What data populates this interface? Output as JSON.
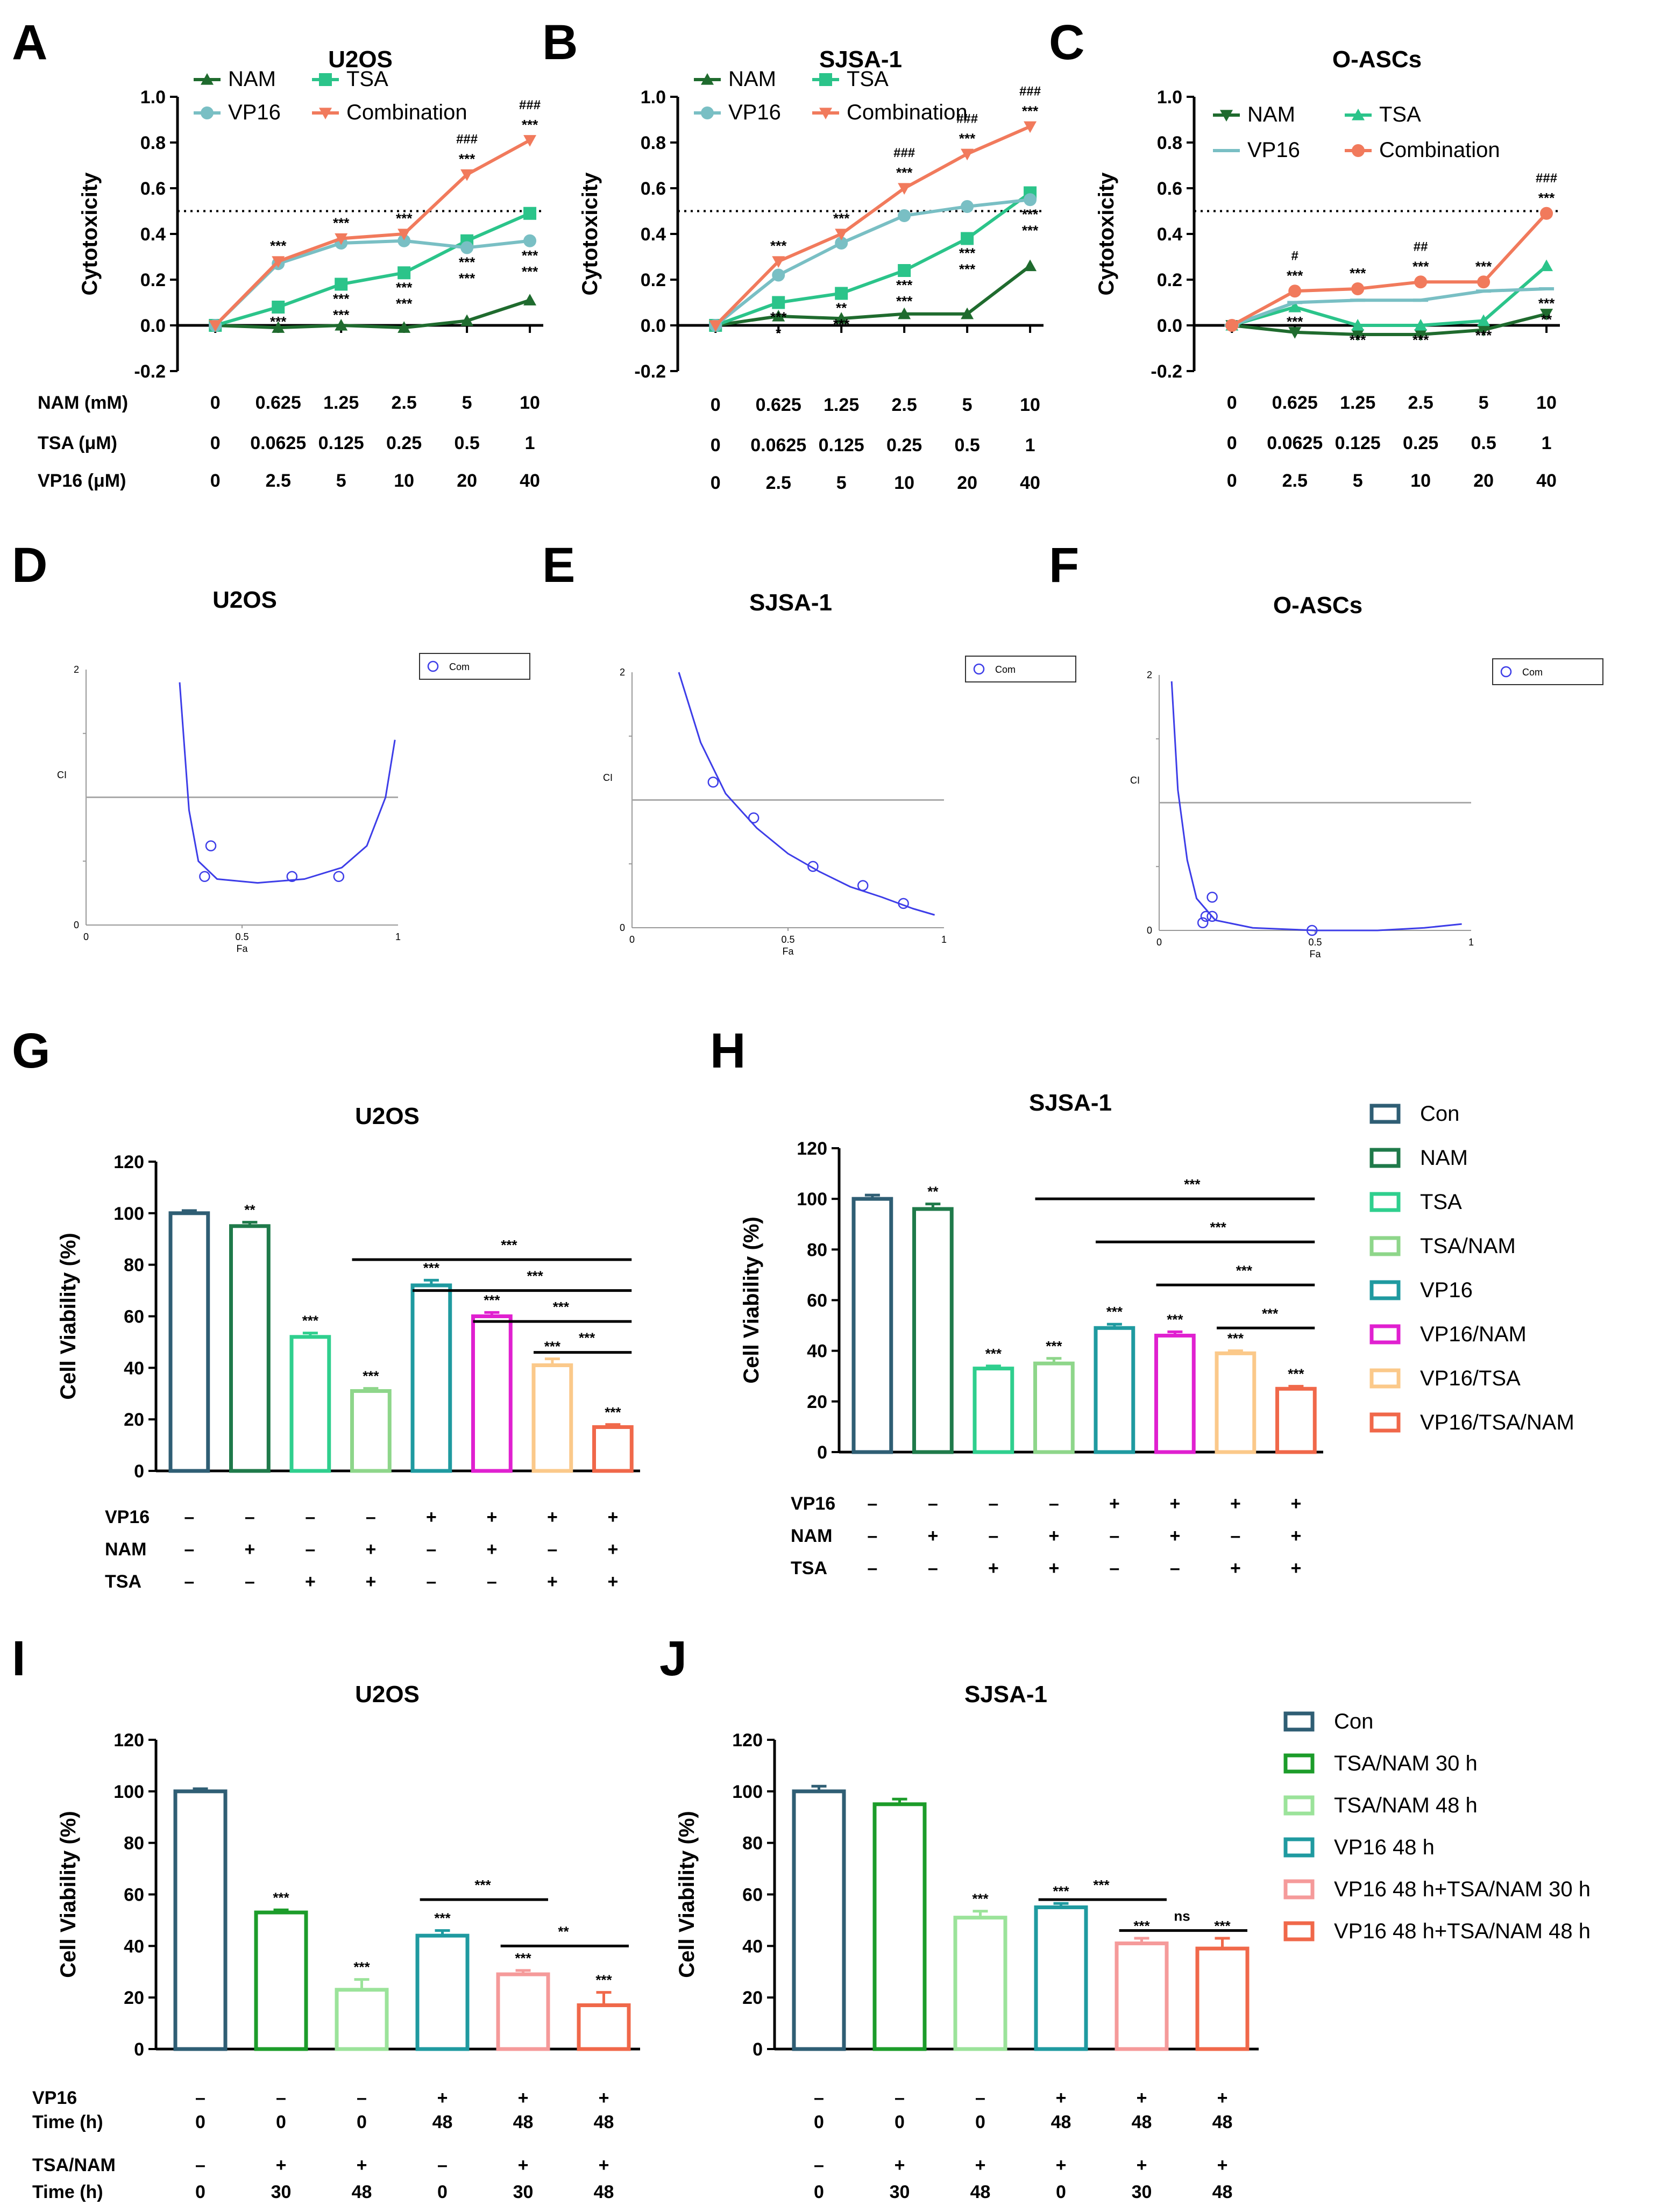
{
  "colors": {
    "NAM": "#1f6b2e",
    "TSA": "#2bc48a",
    "VP16": "#79bfc4",
    "Combination": "#f17a5c",
    "ci_curve": "#3d3de8",
    "bars": [
      "#2f5e74",
      "#1f7a4a",
      "#2fcf8e",
      "#8ed68a",
      "#1f9aa0",
      "#e020d0",
      "#fbc98a",
      "#f0684a"
    ],
    "bars_ij": [
      "#2f5e74",
      "#1c9c2a",
      "#9be39a",
      "#1f9aa0",
      "#f59a9a",
      "#f0684a"
    ]
  },
  "panels": {
    "A": "A",
    "B": "B",
    "C": "C",
    "D": "D",
    "E": "E",
    "F": "F",
    "G": "G",
    "H": "H",
    "I": "I",
    "J": "J"
  },
  "conditions_top": {
    "rows": [
      {
        "label": "NAM (mM)",
        "values": [
          "0",
          "0.625",
          "1.25",
          "2.5",
          "5",
          "10"
        ]
      },
      {
        "label": "TSA (μM)",
        "values": [
          "0",
          "0.0625",
          "0.125",
          "0.25",
          "0.5",
          "1"
        ]
      },
      {
        "label": "VP16 (μM)",
        "values": [
          "0",
          "2.5",
          "5",
          "10",
          "20",
          "40"
        ]
      }
    ]
  },
  "chart_data": [
    {
      "id": "A",
      "type": "line",
      "title": "U2OS",
      "ylabel": "Cytotoxicity",
      "ylim": [
        -0.2,
        1.0
      ],
      "yticks": [
        "-0.2",
        "0.0",
        "0.2",
        "0.4",
        "0.6",
        "0.8",
        "1.0"
      ],
      "threshold": 0.5,
      "legend": [
        "NAM",
        "VP16",
        "TSA",
        "Combination"
      ],
      "series": [
        {
          "name": "NAM",
          "values": [
            0.0,
            -0.01,
            0.0,
            -0.01,
            0.02,
            0.11
          ]
        },
        {
          "name": "TSA",
          "values": [
            0.0,
            0.08,
            0.18,
            0.23,
            0.37,
            0.49
          ]
        },
        {
          "name": "VP16",
          "values": [
            0.0,
            0.27,
            0.36,
            0.37,
            0.34,
            0.37
          ]
        },
        {
          "name": "Combination",
          "values": [
            0.0,
            0.28,
            0.38,
            0.4,
            0.66,
            0.81
          ]
        }
      ],
      "annotations": [
        [
          "",
          "***",
          "***",
          "***",
          "***",
          "***"
        ],
        [
          "",
          "***",
          "***",
          "***",
          "***",
          "***"
        ],
        [
          "",
          "",
          "***",
          "***",
          "***",
          "***"
        ],
        [
          "",
          "",
          "",
          "",
          "###",
          "###"
        ]
      ]
    },
    {
      "id": "B",
      "type": "line",
      "title": "SJSA-1",
      "ylabel": "Cytotoxicity",
      "ylim": [
        -0.2,
        1.0
      ],
      "yticks": [
        "-0.2",
        "0.0",
        "0.2",
        "0.4",
        "0.6",
        "0.8",
        "1.0"
      ],
      "threshold": 0.5,
      "legend": [
        "NAM",
        "VP16",
        "TSA",
        "Combination"
      ],
      "series": [
        {
          "name": "NAM",
          "values": [
            0.0,
            0.04,
            0.03,
            0.05,
            0.05,
            0.26
          ]
        },
        {
          "name": "TSA",
          "values": [
            0.0,
            0.1,
            0.14,
            0.24,
            0.38,
            0.58
          ]
        },
        {
          "name": "VP16",
          "values": [
            0.0,
            0.22,
            0.36,
            0.48,
            0.52,
            0.55
          ]
        },
        {
          "name": "Combination",
          "values": [
            0.0,
            0.28,
            0.4,
            0.6,
            0.75,
            0.87
          ]
        }
      ],
      "annotations": [
        [
          "",
          "***",
          "***",
          "***",
          "***",
          "***"
        ],
        [
          "",
          "***",
          "**",
          "***",
          "***",
          "***"
        ],
        [
          "",
          "*",
          "***",
          "***",
          "***",
          "***"
        ],
        [
          "",
          "",
          "",
          "###",
          "###",
          "###"
        ]
      ]
    },
    {
      "id": "C",
      "type": "line",
      "title": "O-ASCs",
      "ylabel": "Cytotoxicity",
      "ylim": [
        -0.2,
        1.0
      ],
      "yticks": [
        "-0.2",
        "0.0",
        "0.2",
        "0.4",
        "0.6",
        "0.8",
        "1.0"
      ],
      "threshold": 0.5,
      "legend": [
        "NAM",
        "VP16",
        "TSA",
        "Combination"
      ],
      "series": [
        {
          "name": "NAM",
          "values": [
            0.0,
            -0.03,
            -0.04,
            -0.04,
            -0.02,
            0.05
          ]
        },
        {
          "name": "TSA",
          "values": [
            0.0,
            0.08,
            0.0,
            0.0,
            0.02,
            0.26
          ]
        },
        {
          "name": "VP16",
          "values": [
            0.0,
            0.1,
            0.11,
            0.11,
            0.15,
            0.16
          ]
        },
        {
          "name": "Combination",
          "values": [
            0.0,
            0.15,
            0.16,
            0.19,
            0.19,
            0.49
          ]
        }
      ],
      "annotations": [
        [
          "",
          "***",
          "***",
          "***",
          "***",
          "***"
        ],
        [
          "",
          "***",
          "***",
          "***",
          "***",
          "***"
        ],
        [
          "",
          "",
          "",
          "",
          "",
          "**"
        ],
        [
          "",
          "#",
          "",
          "##",
          "",
          "###"
        ]
      ]
    },
    {
      "id": "D",
      "type": "scatter",
      "title": "U2OS",
      "xlabel": "Fa",
      "ylabel": "CI",
      "xlim": [
        0,
        1
      ],
      "ylim": [
        0,
        2
      ],
      "xticks": [
        "0",
        "0.5",
        "1"
      ],
      "yticks": [
        "0",
        "2"
      ],
      "legend": [
        "Com"
      ],
      "points": [
        [
          0.38,
          0.38
        ],
        [
          0.4,
          0.62
        ],
        [
          0.66,
          0.38
        ],
        [
          0.81,
          0.38
        ]
      ],
      "curve": [
        [
          0.3,
          1.9
        ],
        [
          0.33,
          0.9
        ],
        [
          0.36,
          0.5
        ],
        [
          0.42,
          0.36
        ],
        [
          0.55,
          0.33
        ],
        [
          0.7,
          0.36
        ],
        [
          0.82,
          0.45
        ],
        [
          0.9,
          0.62
        ],
        [
          0.96,
          1.0
        ],
        [
          0.99,
          1.45
        ]
      ]
    },
    {
      "id": "E",
      "type": "scatter",
      "title": "SJSA-1",
      "xlabel": "Fa",
      "ylabel": "CI",
      "xlim": [
        0,
        1
      ],
      "ylim": [
        0,
        2
      ],
      "xticks": [
        "0",
        "0.5",
        "1"
      ],
      "yticks": [
        "0",
        "2"
      ],
      "legend": [
        "Com"
      ],
      "points": [
        [
          0.26,
          1.14
        ],
        [
          0.39,
          0.86
        ],
        [
          0.58,
          0.48
        ],
        [
          0.74,
          0.33
        ],
        [
          0.87,
          0.19
        ]
      ],
      "curve": [
        [
          0.15,
          2.0
        ],
        [
          0.22,
          1.45
        ],
        [
          0.3,
          1.05
        ],
        [
          0.4,
          0.78
        ],
        [
          0.5,
          0.58
        ],
        [
          0.6,
          0.44
        ],
        [
          0.7,
          0.32
        ],
        [
          0.8,
          0.24
        ],
        [
          0.9,
          0.15
        ],
        [
          0.97,
          0.1
        ]
      ]
    },
    {
      "id": "F",
      "type": "scatter",
      "title": "O-ASCs",
      "xlabel": "Fa",
      "ylabel": "CI",
      "xlim": [
        0,
        1
      ],
      "ylim": [
        0,
        2
      ],
      "xticks": [
        "0",
        "0.5",
        "1"
      ],
      "yticks": [
        "0",
        "2"
      ],
      "legend": [
        "Com"
      ],
      "points": [
        [
          0.14,
          0.06
        ],
        [
          0.15,
          0.11
        ],
        [
          0.17,
          0.11
        ],
        [
          0.17,
          0.26
        ],
        [
          0.49,
          0.0
        ]
      ],
      "curve": [
        [
          0.04,
          1.95
        ],
        [
          0.06,
          1.1
        ],
        [
          0.09,
          0.55
        ],
        [
          0.12,
          0.25
        ],
        [
          0.18,
          0.08
        ],
        [
          0.3,
          0.02
        ],
        [
          0.5,
          0.0
        ],
        [
          0.7,
          0.0
        ],
        [
          0.85,
          0.02
        ],
        [
          0.97,
          0.05
        ]
      ]
    },
    {
      "id": "G",
      "type": "bar",
      "title": "U2OS",
      "ylabel": "Cell Viability (%)",
      "ylim": [
        0,
        120
      ],
      "yticks": [
        "0",
        "20",
        "40",
        "60",
        "80",
        "100",
        "120"
      ],
      "legend": [
        "Con",
        "NAM",
        "TSA",
        "TSA/NAM",
        "VP16",
        "VP16/NAM",
        "VP16/TSA",
        "VP16/TSA/NAM"
      ],
      "values": [
        100,
        95,
        52,
        31,
        72,
        60,
        41,
        17
      ],
      "errors": [
        1,
        1.5,
        1.5,
        1,
        2,
        1.5,
        2.5,
        1
      ],
      "stars": [
        "",
        "**",
        "***",
        "***",
        "***",
        "***",
        "***",
        "***"
      ],
      "comparisons": [
        {
          "from": 3,
          "to": 7,
          "label": "***"
        },
        {
          "from": 4,
          "to": 7,
          "label": "***"
        },
        {
          "from": 5,
          "to": 7,
          "label": "***"
        },
        {
          "from": 6,
          "to": 7,
          "label": "***"
        }
      ],
      "treatments": [
        {
          "label": "VP16",
          "signs": [
            "–",
            "–",
            "–",
            "–",
            "+",
            "+",
            "+",
            "+"
          ]
        },
        {
          "label": "NAM",
          "signs": [
            "–",
            "+",
            "–",
            "+",
            "–",
            "+",
            "–",
            "+"
          ]
        },
        {
          "label": "TSA",
          "signs": [
            "–",
            "–",
            "+",
            "+",
            "–",
            "–",
            "+",
            "+"
          ]
        }
      ]
    },
    {
      "id": "H",
      "type": "bar",
      "title": "SJSA-1",
      "ylabel": "Cell Viability (%)",
      "ylim": [
        0,
        120
      ],
      "yticks": [
        "0",
        "20",
        "40",
        "60",
        "80",
        "100",
        "120"
      ],
      "legend": [
        "Con",
        "NAM",
        "TSA",
        "TSA/NAM",
        "VP16",
        "VP16/NAM",
        "VP16/TSA",
        "VP16/TSA/NAM"
      ],
      "values": [
        100,
        96,
        33,
        35,
        49,
        46,
        39,
        25
      ],
      "errors": [
        1.5,
        2,
        1,
        2,
        1.5,
        1.5,
        1,
        1
      ],
      "stars": [
        "",
        "**",
        "***",
        "***",
        "***",
        "***",
        "***",
        "***"
      ],
      "comparisons": [
        {
          "from": 3,
          "to": 7,
          "label": "***"
        },
        {
          "from": 4,
          "to": 7,
          "label": "***"
        },
        {
          "from": 5,
          "to": 7,
          "label": "***"
        },
        {
          "from": 6,
          "to": 7,
          "label": "***"
        }
      ],
      "treatments": [
        {
          "label": "VP16",
          "signs": [
            "–",
            "–",
            "–",
            "–",
            "+",
            "+",
            "+",
            "+"
          ]
        },
        {
          "label": "NAM",
          "signs": [
            "–",
            "+",
            "–",
            "+",
            "–",
            "+",
            "–",
            "+"
          ]
        },
        {
          "label": "TSA",
          "signs": [
            "–",
            "–",
            "+",
            "+",
            "–",
            "–",
            "+",
            "+"
          ]
        }
      ]
    },
    {
      "id": "I",
      "type": "bar",
      "title": "U2OS",
      "ylabel": "Cell Viability (%)",
      "ylim": [
        0,
        120
      ],
      "yticks": [
        "0",
        "20",
        "40",
        "60",
        "80",
        "100",
        "120"
      ],
      "legend": [
        "Con",
        "TSA/NAM 30 h",
        "TSA/NAM 48 h",
        "VP16 48 h",
        "VP16 48 h+TSA/NAM 30 h",
        "VP16 48 h+TSA/NAM 48 h"
      ],
      "values": [
        100,
        53,
        23,
        44,
        29,
        17
      ],
      "errors": [
        1,
        1,
        4,
        2,
        1.5,
        5
      ],
      "stars": [
        "",
        "***",
        "***",
        "***",
        "***",
        "***"
      ],
      "comparisons": [
        {
          "from": 3,
          "to": 4,
          "label": "***"
        },
        {
          "from": 4,
          "to": 5,
          "label": "**"
        }
      ],
      "treatments": [
        {
          "label": "VP16",
          "signs": [
            "–",
            "–",
            "–",
            "+",
            "+",
            "+"
          ]
        },
        {
          "label": "Time (h)",
          "signs": [
            "0",
            "0",
            "0",
            "48",
            "48",
            "48"
          ]
        },
        {
          "label": "TSA/NAM",
          "signs": [
            "–",
            "+",
            "+",
            "–",
            "+",
            "+"
          ]
        },
        {
          "label": "Time (h)",
          "signs": [
            "0",
            "30",
            "48",
            "0",
            "30",
            "48"
          ]
        }
      ]
    },
    {
      "id": "J",
      "type": "bar",
      "title": "SJSA-1",
      "ylabel": "Cell Viability (%)",
      "ylim": [
        0,
        120
      ],
      "yticks": [
        "0",
        "20",
        "40",
        "60",
        "80",
        "100",
        "120"
      ],
      "legend": [
        "Con",
        "TSA/NAM 30 h",
        "TSA/NAM 48 h",
        "VP16 48 h",
        "VP16 48 h+TSA/NAM 30 h",
        "VP16 48 h+TSA/NAM 48 h"
      ],
      "values": [
        100,
        95,
        51,
        55,
        41,
        39
      ],
      "errors": [
        2,
        2,
        2.5,
        1.5,
        2,
        4
      ],
      "stars": [
        "",
        "",
        "***",
        "***",
        "***",
        "***"
      ],
      "comparisons": [
        {
          "from": 3,
          "to": 4,
          "label": "***"
        },
        {
          "from": 4,
          "to": 5,
          "label": "ns"
        }
      ],
      "treatments": [
        {
          "label": "",
          "signs": [
            "–",
            "–",
            "–",
            "+",
            "+",
            "+"
          ]
        },
        {
          "label": "",
          "signs": [
            "0",
            "0",
            "0",
            "48",
            "48",
            "48"
          ]
        },
        {
          "label": "",
          "signs": [
            "–",
            "+",
            "+",
            "+",
            "+",
            "+"
          ]
        },
        {
          "label": "",
          "signs": [
            "0",
            "30",
            "48",
            "0",
            "30",
            "48"
          ]
        }
      ]
    }
  ]
}
